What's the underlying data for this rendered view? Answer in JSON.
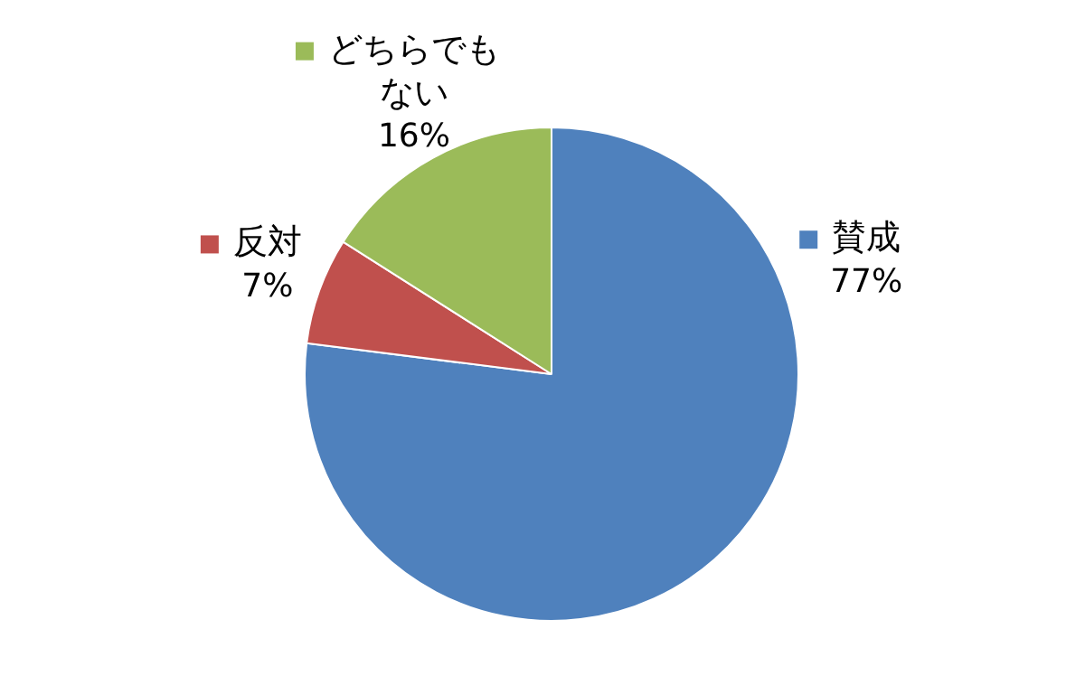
{
  "chart_data": {
    "type": "pie",
    "categories": [
      "賛成",
      "反対",
      "どちらでもない"
    ],
    "values": [
      77,
      7,
      16
    ],
    "colors": [
      "#4f81bd",
      "#c0504d",
      "#9bbb59"
    ],
    "value_labels": [
      "77%",
      "7%",
      "16%"
    ],
    "legend": "top"
  }
}
